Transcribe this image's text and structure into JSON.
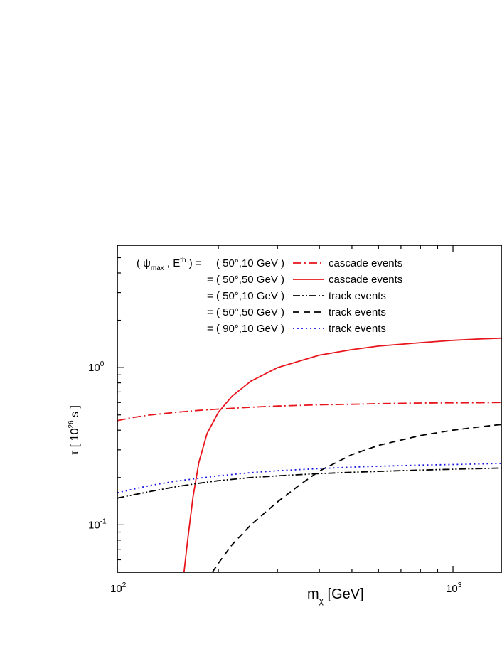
{
  "chart_data": {
    "type": "line",
    "x_scale": "log",
    "y_scale": "log",
    "xlim": [
      100,
      1400
    ],
    "ylim": [
      0.05,
      6.0
    ],
    "xlabel": {
      "main": "m",
      "sub": "χ",
      "rest": " [GeV]"
    },
    "ylabel": {
      "main": "τ  [ 10",
      "sup": "26",
      "rest": " s ]"
    },
    "x_ticks": [
      {
        "value": 100,
        "base": "10",
        "exp": "2"
      },
      {
        "value": 1000,
        "base": "10",
        "exp": "3"
      }
    ],
    "y_ticks": [
      {
        "value": 0.1,
        "base": "10",
        "exp": "-1"
      },
      {
        "value": 1.0,
        "base": "10",
        "exp": "0"
      }
    ],
    "legend_header": {
      "open": "( ψ",
      "sub": "max",
      "mid": " , E",
      "sup": "th",
      "close": " ) ="
    },
    "series": [
      {
        "name": "cascade events",
        "params": "( 50°,10 GeV )",
        "color": "#e8141c",
        "dash": "12,4,2,4",
        "x": [
          100,
          110,
          125,
          150,
          175,
          200,
          250,
          300,
          400,
          500,
          600,
          800,
          1000,
          1200,
          1400
        ],
        "y": [
          0.46,
          0.48,
          0.5,
          0.52,
          0.535,
          0.545,
          0.56,
          0.57,
          0.58,
          0.585,
          0.59,
          0.595,
          0.597,
          0.598,
          0.6
        ]
      },
      {
        "name": "cascade events",
        "params": "= ( 50°,50 GeV )",
        "color": "#e8141c",
        "dash": "",
        "x": [
          158,
          162,
          168,
          175,
          185,
          200,
          220,
          250,
          300,
          400,
          500,
          600,
          800,
          1000,
          1200,
          1400
        ],
        "y": [
          0.05,
          0.08,
          0.15,
          0.25,
          0.38,
          0.52,
          0.66,
          0.82,
          1.0,
          1.2,
          1.3,
          1.37,
          1.44,
          1.49,
          1.52,
          1.54
        ]
      },
      {
        "name": "track events",
        "params": "= ( 50°,10 GeV )",
        "color": "#000000",
        "dash": "10,3,2,3,2,3",
        "x": [
          100,
          125,
          150,
          175,
          200,
          250,
          300,
          400,
          500,
          600,
          800,
          1000,
          1200,
          1400
        ],
        "y": [
          0.148,
          0.163,
          0.175,
          0.184,
          0.191,
          0.2,
          0.205,
          0.212,
          0.216,
          0.219,
          0.223,
          0.226,
          0.228,
          0.23
        ]
      },
      {
        "name": "track events",
        "params": "= ( 50°,50 GeV )",
        "color": "#000000",
        "dash": "9,6",
        "x": [
          192,
          200,
          220,
          250,
          300,
          350,
          400,
          500,
          600,
          800,
          1000,
          1200,
          1400
        ],
        "y": [
          0.05,
          0.057,
          0.075,
          0.1,
          0.14,
          0.18,
          0.22,
          0.28,
          0.32,
          0.37,
          0.4,
          0.42,
          0.435
        ]
      },
      {
        "name": "track events",
        "params": "= ( 90°,10 GeV )",
        "color": "#1414e8",
        "dash": "2,4",
        "x": [
          100,
          125,
          150,
          175,
          200,
          250,
          300,
          400,
          500,
          600,
          800,
          1000,
          1200,
          1400
        ],
        "y": [
          0.16,
          0.178,
          0.19,
          0.198,
          0.205,
          0.215,
          0.221,
          0.228,
          0.233,
          0.236,
          0.24,
          0.242,
          0.244,
          0.246
        ]
      }
    ]
  }
}
